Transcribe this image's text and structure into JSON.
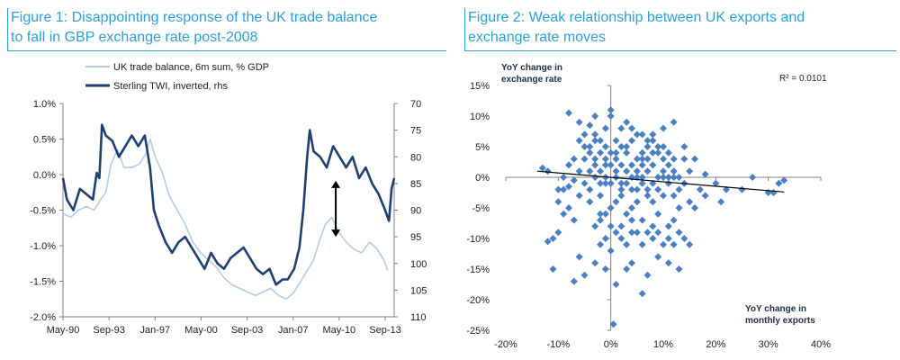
{
  "colors": {
    "title": "#2e9fd8",
    "trade_balance": "#b4cbe6",
    "sterling": "#1f3f73",
    "scatter_point": "#4a7fc3",
    "trend_line": "#000000",
    "axis": "#7f7f7f"
  },
  "chart_data": [
    {
      "type": "line",
      "title_line1": "Figure 1: Disappointing response of the UK trade balance",
      "title_line2": "to fall in GBP exchange rate post-2008",
      "x_tick_labels": [
        "May-90",
        "Sep-93",
        "Jan-97",
        "May-00",
        "Sep-03",
        "Jan-07",
        "May-10",
        "Sep-13"
      ],
      "x_range": [
        1990.0,
        2015.5
      ],
      "y_left_ticks": [
        "1.0%",
        "0.5%",
        "0.0%",
        "-0.5%",
        "-1.0%",
        "-1.5%",
        "-2.0%"
      ],
      "y_left_range": [
        -2.0,
        1.0
      ],
      "y_right_ticks": [
        "70",
        "75",
        "80",
        "85",
        "90",
        "95",
        "100",
        "105",
        "110"
      ],
      "y_right_range": [
        70,
        110
      ],
      "y_right_inverted": true,
      "annotation": "double-headed arrow between the two series after 2010",
      "series": [
        {
          "name": "UK trade balance, 6m sum, % GDP",
          "axis": "left",
          "points": [
            [
              1990.0,
              -0.55
            ],
            [
              1990.6,
              -0.6
            ],
            [
              1991.2,
              -0.5
            ],
            [
              1991.8,
              -0.45
            ],
            [
              1992.4,
              -0.5
            ],
            [
              1992.9,
              -0.35
            ],
            [
              1993.3,
              -0.25
            ],
            [
              1993.7,
              0.15
            ],
            [
              1994.2,
              0.35
            ],
            [
              1994.7,
              0.1
            ],
            [
              1995.3,
              0.1
            ],
            [
              1995.9,
              0.15
            ],
            [
              1996.4,
              0.3
            ],
            [
              1996.7,
              0.5
            ],
            [
              1997.1,
              0.25
            ],
            [
              1997.6,
              0.05
            ],
            [
              1998.2,
              -0.3
            ],
            [
              1998.8,
              -0.5
            ],
            [
              1999.4,
              -0.7
            ],
            [
              2000.0,
              -0.95
            ],
            [
              2000.6,
              -1.1
            ],
            [
              2001.2,
              -1.2
            ],
            [
              2001.8,
              -1.3
            ],
            [
              2002.4,
              -1.45
            ],
            [
              2003.0,
              -1.55
            ],
            [
              2003.6,
              -1.6
            ],
            [
              2004.2,
              -1.65
            ],
            [
              2004.8,
              -1.7
            ],
            [
              2005.4,
              -1.65
            ],
            [
              2006.0,
              -1.6
            ],
            [
              2006.6,
              -1.7
            ],
            [
              2007.2,
              -1.75
            ],
            [
              2007.8,
              -1.65
            ],
            [
              2008.3,
              -1.5
            ],
            [
              2008.8,
              -1.35
            ],
            [
              2009.3,
              -1.2
            ],
            [
              2009.8,
              -0.9
            ],
            [
              2010.2,
              -0.7
            ],
            [
              2010.7,
              -0.6
            ],
            [
              2011.2,
              -0.8
            ],
            [
              2011.8,
              -0.95
            ],
            [
              2012.4,
              -1.05
            ],
            [
              2013.0,
              -1.1
            ],
            [
              2013.6,
              -0.95
            ],
            [
              2014.2,
              -1.05
            ],
            [
              2014.7,
              -1.2
            ],
            [
              2015.0,
              -1.35
            ]
          ]
        },
        {
          "name": "Sterling TWI, inverted, rhs",
          "axis": "right",
          "points": [
            [
              1990.0,
              84
            ],
            [
              1990.3,
              88
            ],
            [
              1990.8,
              90
            ],
            [
              1991.3,
              86
            ],
            [
              1991.8,
              87
            ],
            [
              1992.3,
              88
            ],
            [
              1992.6,
              83
            ],
            [
              1992.8,
              84
            ],
            [
              1993.0,
              74
            ],
            [
              1993.3,
              76
            ],
            [
              1993.8,
              77
            ],
            [
              1994.3,
              80
            ],
            [
              1994.8,
              78
            ],
            [
              1995.3,
              76
            ],
            [
              1995.8,
              78
            ],
            [
              1996.3,
              76
            ],
            [
              1996.7,
              82
            ],
            [
              1997.0,
              90
            ],
            [
              1997.4,
              93
            ],
            [
              1997.9,
              96
            ],
            [
              1998.4,
              98
            ],
            [
              1998.9,
              96
            ],
            [
              1999.4,
              95
            ],
            [
              1999.9,
              97
            ],
            [
              2000.4,
              99
            ],
            [
              2000.9,
              101
            ],
            [
              2001.4,
              98
            ],
            [
              2001.9,
              100
            ],
            [
              2002.4,
              101
            ],
            [
              2002.9,
              99
            ],
            [
              2003.4,
              98
            ],
            [
              2003.9,
              97
            ],
            [
              2004.4,
              99
            ],
            [
              2004.9,
              101
            ],
            [
              2005.4,
              102
            ],
            [
              2005.9,
              101
            ],
            [
              2006.4,
              104
            ],
            [
              2006.9,
              103
            ],
            [
              2007.3,
              103
            ],
            [
              2007.8,
              101
            ],
            [
              2008.2,
              97
            ],
            [
              2008.5,
              90
            ],
            [
              2008.8,
              80
            ],
            [
              2009.0,
              75
            ],
            [
              2009.3,
              79
            ],
            [
              2009.8,
              80
            ],
            [
              2010.3,
              82
            ],
            [
              2010.8,
              78
            ],
            [
              2011.3,
              80
            ],
            [
              2011.8,
              82
            ],
            [
              2012.3,
              80
            ],
            [
              2012.8,
              84
            ],
            [
              2013.3,
              82
            ],
            [
              2013.8,
              85
            ],
            [
              2014.3,
              87
            ],
            [
              2014.8,
              90
            ],
            [
              2015.1,
              92
            ],
            [
              2015.3,
              86
            ],
            [
              2015.5,
              84
            ]
          ]
        }
      ]
    },
    {
      "type": "scatter",
      "title_line1": "Figure 2: Weak relationship between UK exports and",
      "title_line2": "exchange rate moves",
      "xlabel_line1": "YoY change in",
      "xlabel_line2": "monthly exports",
      "ylabel_line1": "YoY change in",
      "ylabel_line2": "exchange rate",
      "r2_label": "R² = 0.0101",
      "x_range": [
        -20,
        40
      ],
      "y_range": [
        -25,
        15
      ],
      "x_ticks": [
        -20,
        -10,
        0,
        10,
        20,
        30,
        40
      ],
      "x_tick_labels": [
        "-20%",
        "-10%",
        "0%",
        "10%",
        "20%",
        "30%",
        "40%"
      ],
      "y_ticks": [
        15,
        10,
        5,
        0,
        -5,
        -10,
        -15,
        -20,
        -25
      ],
      "y_tick_labels": [
        "15%",
        "10%",
        "5%",
        "0%",
        "-5%",
        "-10%",
        "-15%",
        "-20%",
        "-25%"
      ],
      "trendline": [
        [
          -14,
          1.0
        ],
        [
          33,
          -2.4
        ]
      ],
      "points": [
        [
          -12,
          1
        ],
        [
          -13,
          1.5
        ],
        [
          -7,
          -0.5
        ],
        [
          -9,
          -2
        ],
        [
          -8,
          -1.5
        ],
        [
          -6,
          -3
        ],
        [
          -4,
          1
        ],
        [
          -3,
          3
        ],
        [
          -2,
          -1
        ],
        [
          -1,
          2
        ],
        [
          0,
          4
        ],
        [
          1,
          1
        ],
        [
          2,
          -2
        ],
        [
          3,
          5
        ],
        [
          4,
          0
        ],
        [
          5,
          -4
        ],
        [
          6,
          3
        ],
        [
          7,
          1
        ],
        [
          8,
          -1
        ],
        [
          9,
          4
        ],
        [
          10,
          -3
        ],
        [
          11,
          2
        ],
        [
          12,
          0
        ],
        [
          13,
          -5
        ],
        [
          14,
          3
        ],
        [
          15,
          1
        ],
        [
          -5,
          5
        ],
        [
          -4,
          -4
        ],
        [
          -3,
          7
        ],
        [
          -2,
          -6
        ],
        [
          -1,
          8
        ],
        [
          0,
          10
        ],
        [
          1,
          6
        ],
        [
          2,
          -8
        ],
        [
          3,
          9
        ],
        [
          4,
          -9
        ],
        [
          5,
          7
        ],
        [
          6,
          -7
        ],
        [
          7,
          6
        ],
        [
          8,
          -10
        ],
        [
          9,
          -6
        ],
        [
          10,
          5
        ],
        [
          11,
          -8
        ],
        [
          12,
          -11
        ],
        [
          13,
          -9
        ],
        [
          14,
          -10
        ],
        [
          15,
          -11
        ],
        [
          -11,
          -10
        ],
        [
          -10,
          -9
        ],
        [
          -12,
          -10.5
        ],
        [
          -11,
          -15
        ],
        [
          -7,
          -17
        ],
        [
          -6,
          -13
        ],
        [
          -5,
          -16
        ],
        [
          -3,
          -14
        ],
        [
          -1,
          -15
        ],
        [
          1,
          -17.5
        ],
        [
          0.5,
          -24
        ],
        [
          3,
          -15
        ],
        [
          4,
          -14
        ],
        [
          6,
          -19
        ],
        [
          7,
          -16
        ],
        [
          9,
          -13
        ],
        [
          11,
          -14
        ],
        [
          13,
          -15
        ],
        [
          -8,
          10.5
        ],
        [
          -6,
          9
        ],
        [
          -4,
          8.5
        ],
        [
          -3,
          10
        ],
        [
          -2,
          6
        ],
        [
          0,
          11
        ],
        [
          2,
          8
        ],
        [
          4,
          8
        ],
        [
          6,
          7
        ],
        [
          8,
          6
        ],
        [
          10,
          8
        ],
        [
          12,
          9
        ],
        [
          14,
          5
        ],
        [
          16,
          3
        ],
        [
          18,
          0.5
        ],
        [
          20,
          -1
        ],
        [
          21,
          -4
        ],
        [
          22,
          -2
        ],
        [
          25,
          -2
        ],
        [
          27,
          0
        ],
        [
          30,
          -2.5
        ],
        [
          31,
          -2.5
        ],
        [
          32,
          -1
        ],
        [
          33,
          -0.5
        ],
        [
          -10,
          -2
        ],
        [
          -9,
          0
        ],
        [
          -8,
          2
        ],
        [
          -7,
          3
        ],
        [
          -6,
          1
        ],
        [
          -5,
          -1
        ],
        [
          -4,
          -2
        ],
        [
          -3,
          0
        ],
        [
          -2,
          -3
        ],
        [
          -1,
          -1
        ],
        [
          0,
          -5
        ],
        [
          1,
          -4
        ],
        [
          2,
          -3
        ],
        [
          3,
          -6
        ],
        [
          4,
          -5
        ],
        [
          5,
          -2
        ],
        [
          6,
          -1
        ],
        [
          7,
          -3
        ],
        [
          8,
          -4
        ],
        [
          9,
          -2
        ],
        [
          10,
          0
        ],
        [
          11,
          -1
        ],
        [
          12,
          -3
        ],
        [
          13,
          -2
        ],
        [
          14,
          -1
        ],
        [
          15,
          -4
        ],
        [
          16,
          -5
        ],
        [
          17,
          -2
        ],
        [
          18,
          -3
        ],
        [
          -5,
          3
        ],
        [
          -4,
          4
        ],
        [
          -3,
          2
        ],
        [
          -2,
          1
        ],
        [
          -1,
          3
        ],
        [
          0,
          2
        ],
        [
          1,
          3
        ],
        [
          2,
          2
        ],
        [
          3,
          1
        ],
        [
          4,
          2
        ],
        [
          5,
          1
        ],
        [
          6,
          0
        ],
        [
          7,
          -2
        ],
        [
          8,
          2
        ],
        [
          9,
          0
        ],
        [
          10,
          1
        ],
        [
          11,
          0
        ],
        [
          12,
          1
        ],
        [
          13,
          0
        ],
        [
          -6,
          6
        ],
        [
          -5,
          7
        ],
        [
          -4,
          5
        ],
        [
          -3,
          6
        ],
        [
          -1,
          5
        ],
        [
          1,
          4
        ],
        [
          2,
          5
        ],
        [
          3,
          4
        ],
        [
          4,
          6
        ],
        [
          5,
          3
        ],
        [
          6,
          4
        ],
        [
          7,
          3
        ],
        [
          8,
          4
        ],
        [
          9,
          5
        ],
        [
          10,
          3
        ],
        [
          11,
          4
        ],
        [
          12,
          3
        ],
        [
          -3,
          -8
        ],
        [
          -2,
          -7
        ],
        [
          -1,
          -6
        ],
        [
          0,
          -8
        ],
        [
          1,
          -9
        ],
        [
          2,
          -10
        ],
        [
          3,
          -11
        ],
        [
          4,
          -7
        ],
        [
          5,
          -9
        ],
        [
          6,
          -11
        ],
        [
          7,
          -9
        ],
        [
          8,
          -8
        ],
        [
          9,
          -9
        ],
        [
          10,
          -11
        ],
        [
          11,
          -10
        ],
        [
          12,
          -7
        ],
        [
          -8,
          -5
        ],
        [
          -7,
          -7
        ],
        [
          -9,
          -6
        ],
        [
          -10,
          -4
        ],
        [
          -2,
          -11
        ],
        [
          -1,
          -10
        ],
        [
          0,
          -12
        ],
        [
          0,
          -1
        ],
        [
          1,
          0
        ],
        [
          2,
          -1
        ],
        [
          3,
          -1
        ],
        [
          4,
          -2
        ],
        [
          5,
          0
        ],
        [
          6,
          2
        ],
        [
          7,
          5
        ],
        [
          8,
          7
        ],
        [
          -1,
          0
        ],
        [
          -2,
          4
        ]
      ]
    }
  ]
}
